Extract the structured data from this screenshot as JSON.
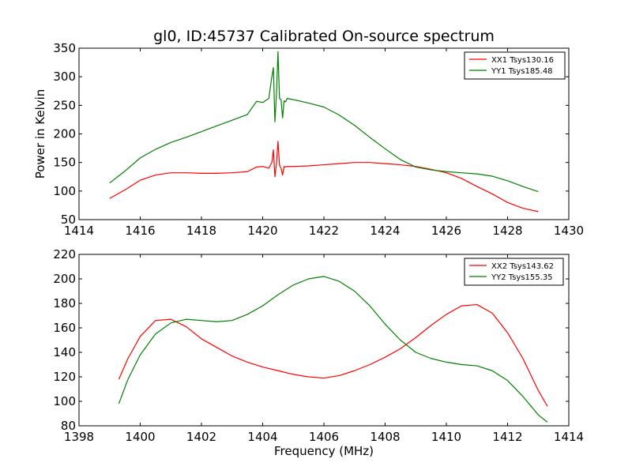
{
  "chart_data": [
    {
      "type": "line",
      "title": "gl0, ID:45737 Calibrated On-source spectrum",
      "xlabel": "",
      "ylabel": "Power in Kelvin",
      "xlim": [
        1414,
        1430
      ],
      "ylim": [
        50,
        350
      ],
      "xticks": [
        1414,
        1416,
        1418,
        1420,
        1422,
        1424,
        1426,
        1428,
        1430
      ],
      "yticks": [
        50,
        100,
        150,
        200,
        250,
        300,
        350
      ],
      "legend_position": "top-right",
      "grid": false,
      "series": [
        {
          "name": "XX1 Tsys130.16",
          "color": "#ff0000",
          "x": [
            1415.0,
            1415.5,
            1416.0,
            1416.5,
            1417.0,
            1417.5,
            1418.0,
            1418.5,
            1419.0,
            1419.5,
            1419.8,
            1420.0,
            1420.2,
            1420.3,
            1420.35,
            1420.4,
            1420.45,
            1420.5,
            1420.55,
            1420.6,
            1420.65,
            1420.7,
            1420.75,
            1420.8,
            1421.0,
            1421.5,
            1422.0,
            1422.5,
            1423.0,
            1423.5,
            1424.0,
            1424.5,
            1425.0,
            1425.5,
            1426.0,
            1426.5,
            1427.0,
            1427.5,
            1428.0,
            1428.5,
            1429.0
          ],
          "values": [
            87,
            102,
            119,
            128,
            132,
            132,
            131,
            131,
            132,
            134,
            142,
            143,
            140,
            150,
            172,
            125,
            148,
            187,
            145,
            140,
            128,
            143,
            142,
            143,
            143,
            144,
            146,
            148,
            150,
            150,
            148,
            146,
            143,
            138,
            132,
            122,
            108,
            95,
            80,
            70,
            64
          ]
        },
        {
          "name": "YY1 Tsys185.48",
          "color": "#008000",
          "x": [
            1415.0,
            1415.5,
            1416.0,
            1416.5,
            1417.0,
            1417.5,
            1418.0,
            1418.5,
            1419.0,
            1419.5,
            1419.8,
            1420.0,
            1420.2,
            1420.3,
            1420.35,
            1420.4,
            1420.45,
            1420.5,
            1420.55,
            1420.6,
            1420.65,
            1420.7,
            1420.75,
            1420.8,
            1421.0,
            1421.5,
            1422.0,
            1422.5,
            1423.0,
            1423.5,
            1424.0,
            1424.5,
            1425.0,
            1425.5,
            1426.0,
            1426.5,
            1427.0,
            1427.5,
            1428.0,
            1428.5,
            1429.0
          ],
          "values": [
            114,
            135,
            158,
            173,
            185,
            194,
            204,
            214,
            224,
            234,
            257,
            255,
            262,
            300,
            316,
            221,
            270,
            344,
            262,
            260,
            228,
            258,
            256,
            262,
            260,
            254,
            247,
            233,
            215,
            194,
            174,
            155,
            142,
            137,
            134,
            132,
            130,
            126,
            118,
            108,
            99
          ]
        }
      ]
    },
    {
      "type": "line",
      "title": "",
      "xlabel": "Frequency (MHz)",
      "ylabel": "",
      "xlim": [
        1398,
        1414
      ],
      "ylim": [
        80,
        220
      ],
      "xticks": [
        1398,
        1400,
        1402,
        1404,
        1406,
        1408,
        1410,
        1412,
        1414
      ],
      "yticks": [
        80,
        100,
        120,
        140,
        160,
        180,
        200,
        220
      ],
      "legend_position": "top-right",
      "grid": false,
      "series": [
        {
          "name": "XX2 Tsys143.62",
          "color": "#ff0000",
          "x": [
            1399.3,
            1399.6,
            1400.0,
            1400.5,
            1401.0,
            1401.5,
            1402.0,
            1402.5,
            1403.0,
            1403.5,
            1404.0,
            1404.5,
            1405.0,
            1405.5,
            1406.0,
            1406.5,
            1407.0,
            1407.5,
            1408.0,
            1408.5,
            1409.0,
            1409.5,
            1410.0,
            1410.5,
            1411.0,
            1411.5,
            1412.0,
            1412.5,
            1413.0,
            1413.3
          ],
          "values": [
            118,
            135,
            153,
            166,
            167,
            161,
            151,
            144,
            137,
            132,
            128,
            125,
            122,
            120,
            119,
            121,
            125,
            130,
            136,
            143,
            152,
            162,
            171,
            178,
            179,
            172,
            156,
            135,
            109,
            96
          ]
        },
        {
          "name": "YY2 Tsys155.35",
          "color": "#008000",
          "x": [
            1399.3,
            1399.6,
            1400.0,
            1400.5,
            1401.0,
            1401.5,
            1402.0,
            1402.5,
            1403.0,
            1403.5,
            1404.0,
            1404.5,
            1405.0,
            1405.5,
            1406.0,
            1406.5,
            1407.0,
            1407.5,
            1408.0,
            1408.5,
            1409.0,
            1409.5,
            1410.0,
            1410.5,
            1411.0,
            1411.5,
            1412.0,
            1412.5,
            1413.0,
            1413.3
          ],
          "values": [
            98,
            118,
            138,
            155,
            164,
            167,
            166,
            165,
            166,
            171,
            178,
            187,
            195,
            200,
            202,
            198,
            190,
            178,
            163,
            150,
            140,
            135,
            132,
            130,
            129,
            125,
            117,
            104,
            89,
            83
          ]
        }
      ]
    }
  ]
}
